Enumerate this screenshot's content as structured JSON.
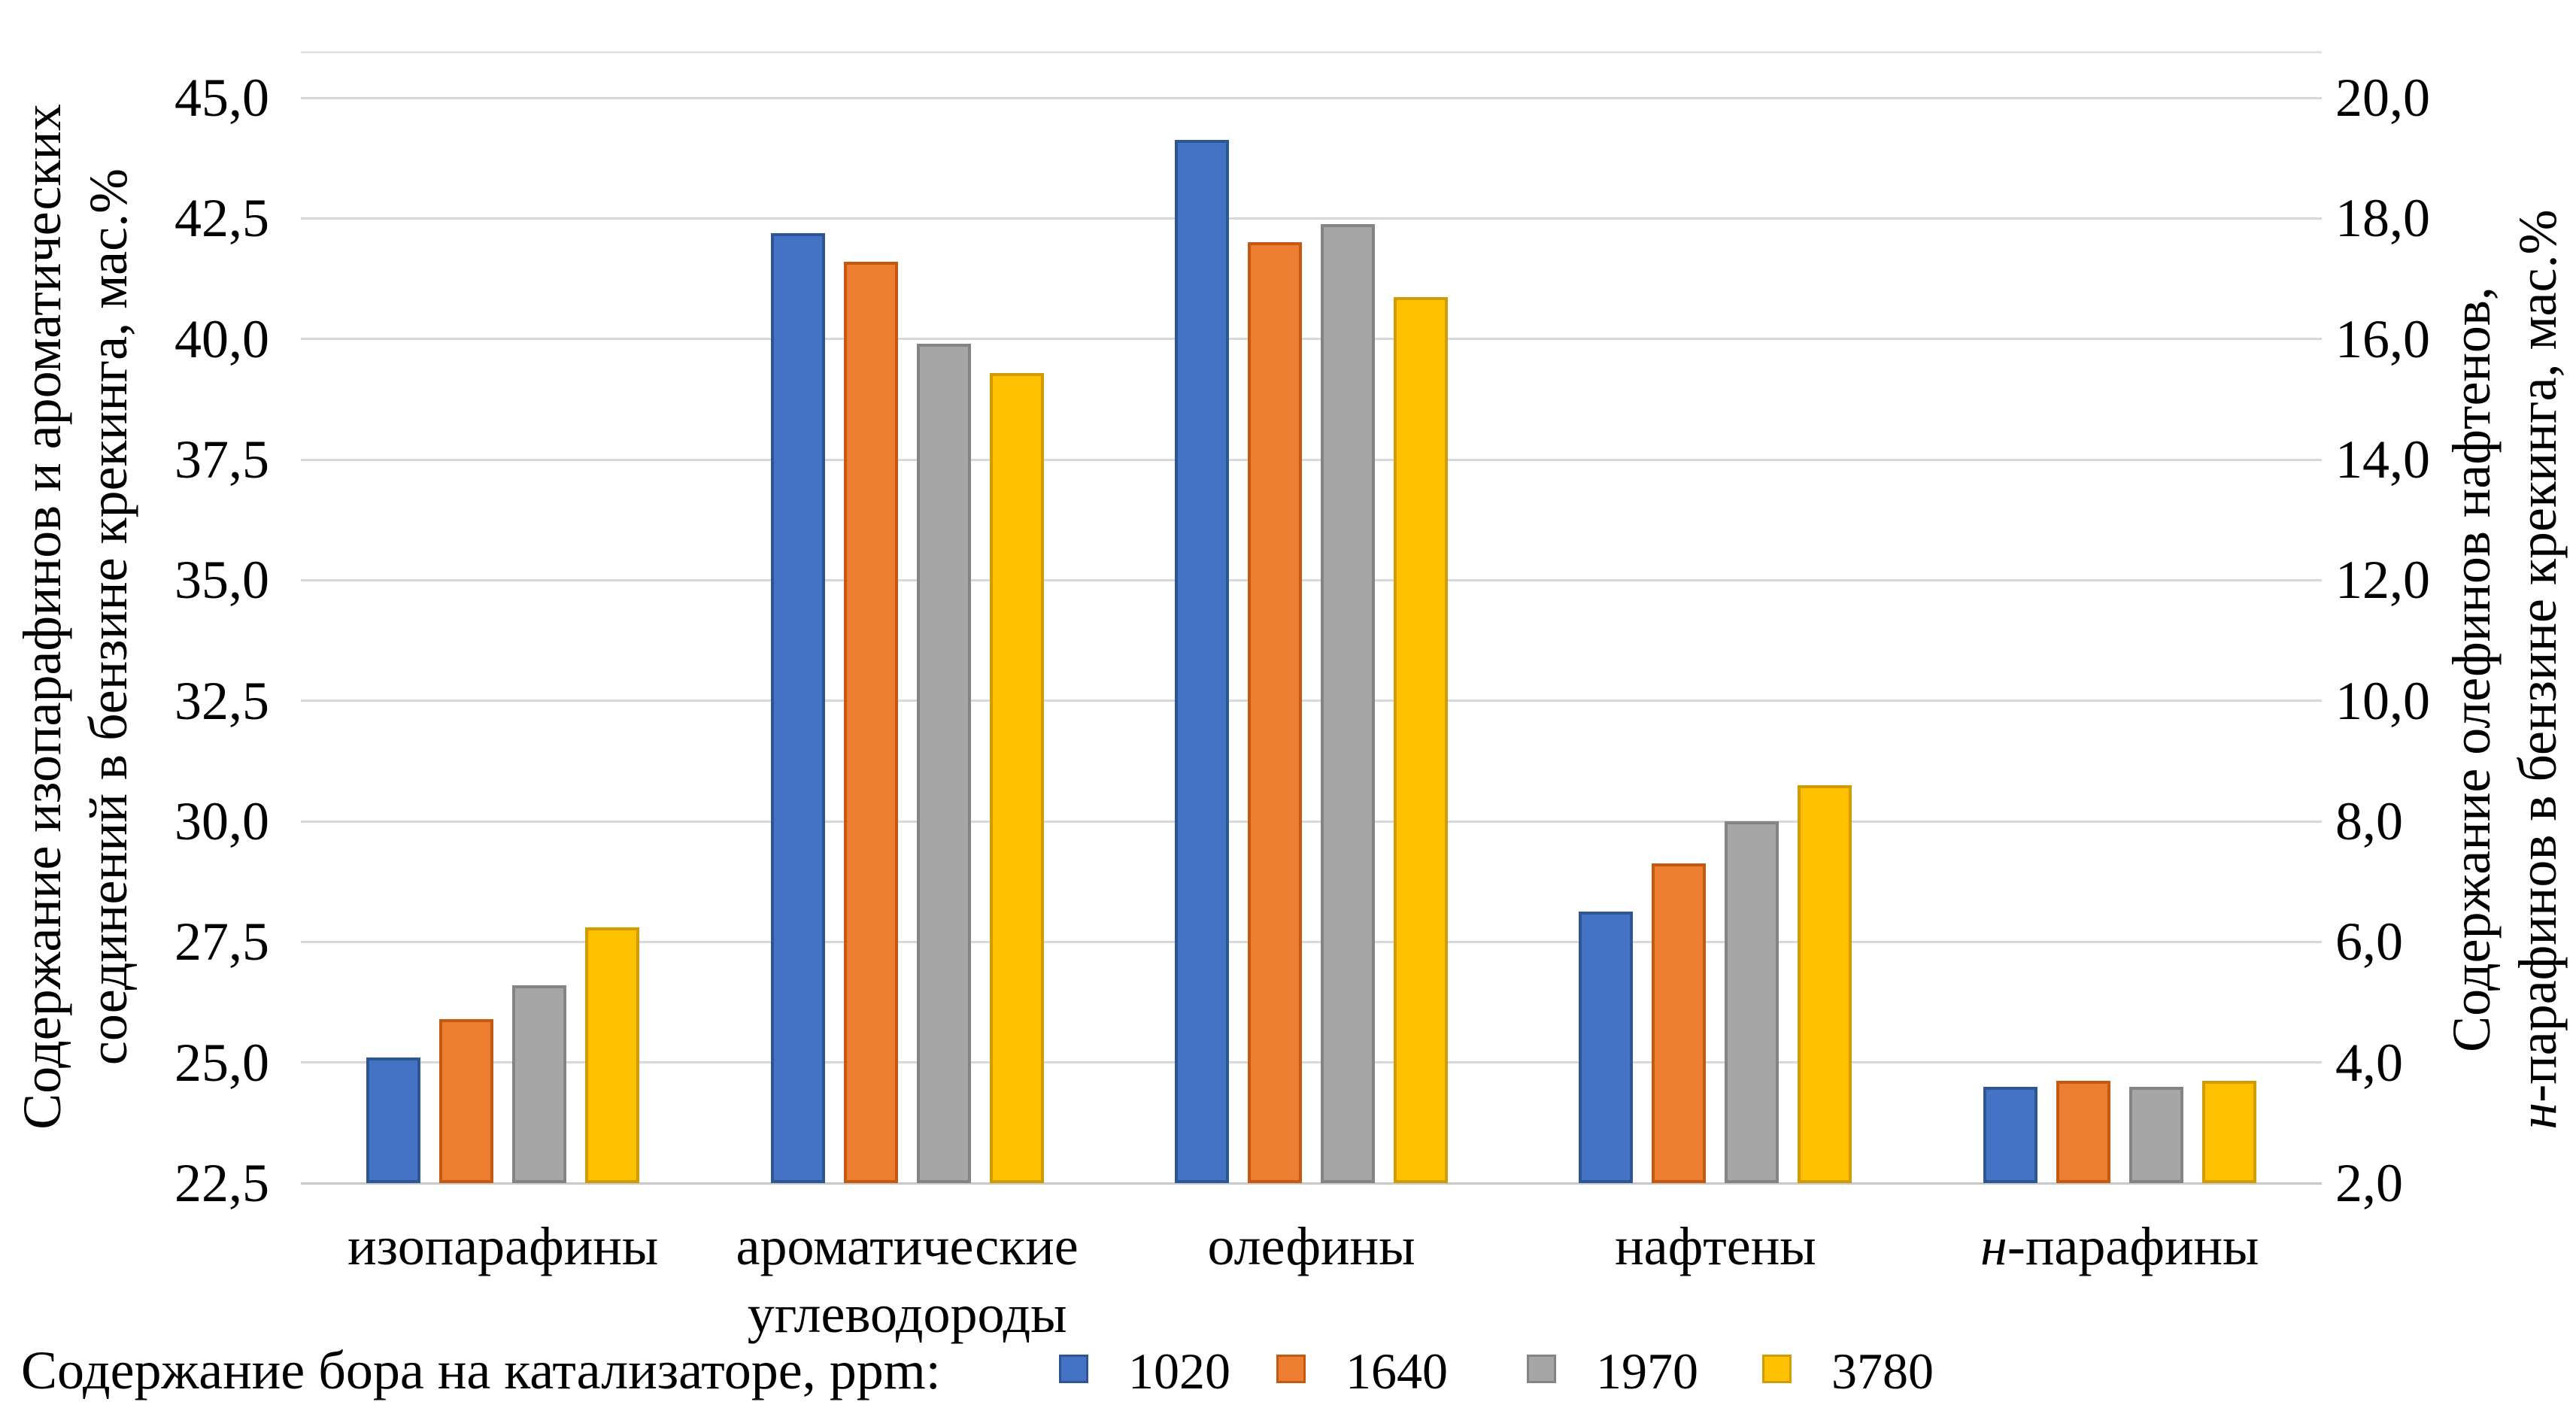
{
  "chart_data": {
    "type": "bar",
    "legend_title": "Содержание бора на катализаторе, ppm:",
    "legend_position": "bottom",
    "grid": true,
    "left_axis": {
      "title_lines": [
        {
          "text": "Содержание изопарафинов и ароматических"
        },
        {
          "text": "соединений в бензине крекинга, мас.%"
        }
      ],
      "ticks": [
        "45,0",
        "42,5",
        "40,0",
        "37,5",
        "35,0",
        "32,5",
        "30,0",
        "27,5",
        "25,0",
        "22,5"
      ],
      "min": 22.5,
      "max": 45.0,
      "step": 2.5
    },
    "right_axis": {
      "title_lines": [
        {
          "text": "Содержание олефинов нафтенов,"
        },
        {
          "text": "н-парафинов в бензине крекинга, мас.%",
          "italic_first": true
        }
      ],
      "ticks": [
        "20,0",
        "18,0",
        "16,0",
        "14,0",
        "12,0",
        "10,0",
        "8,0",
        "6,0",
        "4,0",
        "2,0"
      ],
      "min": 2.0,
      "max": 20.0,
      "step": 2.0
    },
    "categories": [
      {
        "lines": [
          "изопарафины"
        ],
        "axis": "left"
      },
      {
        "lines": [
          "ароматические",
          "углеводороды"
        ],
        "axis": "left"
      },
      {
        "lines": [
          "олефины"
        ],
        "axis": "right"
      },
      {
        "lines": [
          "нафтены"
        ],
        "axis": "right"
      },
      {
        "lines": [
          "н-парафины"
        ],
        "axis": "right",
        "italic_first": true
      }
    ],
    "series": [
      {
        "name": "1020",
        "fill": "#4472C4",
        "border": "#2E5693",
        "values": [
          25.1,
          42.2,
          19.3,
          6.5,
          3.6
        ]
      },
      {
        "name": "1640",
        "fill": "#ED7D31",
        "border": "#C45911",
        "values": [
          25.9,
          41.6,
          17.6,
          7.3,
          3.7
        ]
      },
      {
        "name": "1970",
        "fill": "#A6A6A6",
        "border": "#848484",
        "values": [
          26.6,
          39.9,
          17.9,
          8.0,
          3.6
        ]
      },
      {
        "name": "3780",
        "fill": "#FFC000",
        "border": "#D29B00",
        "values": [
          27.8,
          39.3,
          16.7,
          8.6,
          3.7
        ]
      }
    ],
    "style": {
      "background": "#FFFFFF",
      "gridline_color": "#D9D9D9",
      "axis_line_color": "#C9C9C9",
      "text_color": "#000000"
    }
  }
}
